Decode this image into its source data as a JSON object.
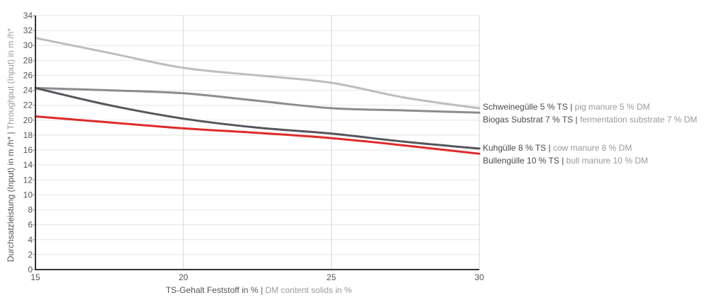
{
  "chart_data": {
    "type": "line",
    "xlabel_de": "TS-Gehalt Feststoff in %",
    "xlabel_sep": " | ",
    "xlabel_en": "DM content solids in %",
    "ylabel_de": "Durchsatzleistung (Input) in m /h*",
    "ylabel_sep": " | ",
    "ylabel_en": "Throughput (Input) in m /h*",
    "xlim": [
      15,
      30
    ],
    "ylim": [
      0,
      34
    ],
    "x_ticks": [
      15,
      20,
      25,
      30
    ],
    "y_ticks": [
      0,
      2,
      4,
      6,
      8,
      10,
      12,
      14,
      16,
      18,
      20,
      22,
      24,
      26,
      28,
      30,
      32,
      34
    ],
    "grid": "vertical",
    "legend_placement": "right of lines",
    "series": [
      {
        "label_de": "Schweinegülle 5 % TS",
        "label_en": "pig manure 5 % DM",
        "color": "#bdbdbd",
        "x": [
          15,
          17.5,
          20,
          22.5,
          25,
          27.5,
          30
        ],
        "y": [
          31.0,
          29.0,
          27.0,
          26.0,
          25.0,
          23.0,
          21.6
        ]
      },
      {
        "label_de": "Biogas Substrat 7 % TS",
        "label_en": "fermentation substrate 7 % DM",
        "color": "#8c8c8c",
        "x": [
          15,
          17.5,
          20,
          22.5,
          25,
          27.5,
          30
        ],
        "y": [
          24.3,
          24.0,
          23.6,
          22.6,
          21.6,
          21.3,
          21.0
        ]
      },
      {
        "label_de": "Kuhgülle 8 % TS",
        "label_en": "cow manure 8 % DM",
        "color": "#55555c",
        "x": [
          15,
          17.5,
          20,
          22.5,
          25,
          27.5,
          30
        ],
        "y": [
          24.3,
          22.0,
          20.2,
          19.0,
          18.2,
          17.1,
          16.2
        ]
      },
      {
        "label_de": "Bullengülle 10 % TS",
        "label_en": "bull manure 10 % DM",
        "color": "#e02a2a",
        "x": [
          15,
          17.5,
          20,
          22.5,
          25,
          27.5,
          30
        ],
        "y": [
          20.5,
          19.7,
          18.9,
          18.3,
          17.6,
          16.6,
          15.5
        ]
      }
    ]
  }
}
